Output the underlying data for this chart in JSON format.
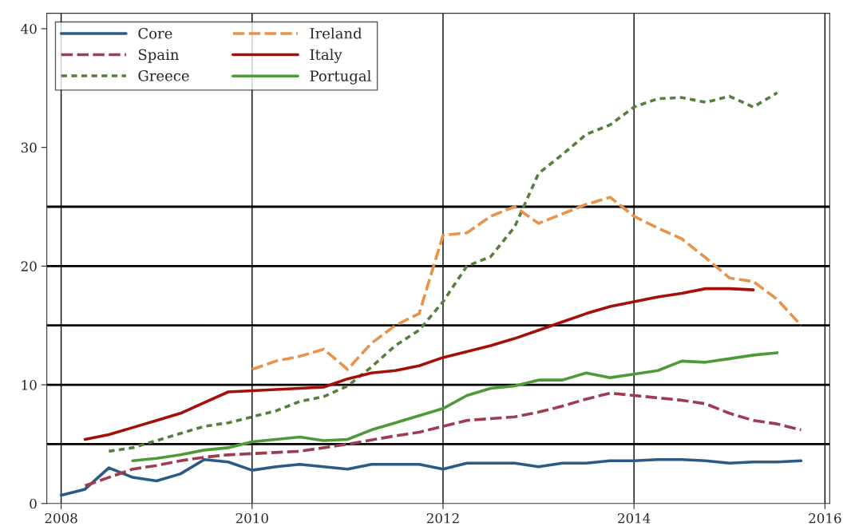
{
  "chart_data": {
    "type": "line",
    "xlim": [
      2007.85,
      2016.05
    ],
    "xticks": [
      2008,
      2010,
      2012,
      2014,
      2016
    ],
    "ylim": [
      0,
      41.3
    ],
    "yticks": [
      0,
      10,
      20,
      30,
      40
    ],
    "grid": "x",
    "legend": "top left",
    "series": [
      {
        "name": "Core",
        "color": "#2b5b84",
        "line_style": "solid",
        "x": [
          2008.0,
          2008.25,
          2008.5,
          2008.75,
          2009.0,
          2009.25,
          2009.5,
          2009.75,
          2010.0,
          2010.25,
          2010.5,
          2010.75,
          2011.0,
          2011.25,
          2011.5,
          2011.75,
          2012.0,
          2012.25,
          2012.5,
          2012.75,
          2013.0,
          2013.25,
          2013.5,
          2013.75,
          2014.0,
          2014.25,
          2014.5,
          2014.75,
          2015.0,
          2015.25,
          2015.5,
          2015.75
        ],
        "values": [
          0.7,
          1.2,
          3.0,
          2.2,
          1.9,
          2.5,
          3.7,
          3.5,
          2.8,
          3.1,
          3.3,
          3.1,
          2.9,
          3.3,
          3.3,
          3.3,
          2.9,
          3.4,
          3.4,
          3.4,
          3.1,
          3.4,
          3.4,
          3.6,
          3.6,
          3.7,
          3.7,
          3.6,
          3.4,
          3.5,
          3.5,
          3.6
        ]
      },
      {
        "name": "Spain",
        "color": "#9c3d52",
        "line_style": "dashed",
        "x": [
          2008.25,
          2008.5,
          2008.75,
          2009.0,
          2009.25,
          2009.5,
          2009.75,
          2010.0,
          2010.5,
          2011.0,
          2011.5,
          2011.75,
          2012.0,
          2012.25,
          2012.75,
          2013.0,
          2013.25,
          2013.5,
          2013.75,
          2014.0,
          2014.5,
          2014.75,
          2015.0,
          2015.25,
          2015.5,
          2015.75
        ],
        "values": [
          1.5,
          2.2,
          2.9,
          3.2,
          3.6,
          3.9,
          4.1,
          4.2,
          4.4,
          5.0,
          5.7,
          6.0,
          6.5,
          7.0,
          7.3,
          7.7,
          8.2,
          8.8,
          9.3,
          9.1,
          8.7,
          8.4,
          7.6,
          7.0,
          6.7,
          6.2
        ]
      },
      {
        "name": "Greece",
        "color": "#557f3a",
        "line_style": "dotted",
        "x": [
          2008.5,
          2008.75,
          2009.0,
          2009.25,
          2009.5,
          2009.75,
          2010.0,
          2010.25,
          2010.5,
          2010.75,
          2011.0,
          2011.25,
          2011.5,
          2011.75,
          2012.0,
          2012.25,
          2012.5,
          2012.75,
          2013.0,
          2013.25,
          2013.5,
          2013.75,
          2014.0,
          2014.25,
          2014.5,
          2014.75,
          2015.0,
          2015.25,
          2015.5
        ],
        "values": [
          4.4,
          4.7,
          5.3,
          5.9,
          6.5,
          6.8,
          7.3,
          7.8,
          8.6,
          9.0,
          9.9,
          11.5,
          13.3,
          14.6,
          17.0,
          20.0,
          20.8,
          23.3,
          27.8,
          29.4,
          31.1,
          31.9,
          33.4,
          34.1,
          34.2,
          33.8,
          34.3,
          33.4,
          34.6
        ]
      },
      {
        "name": "Ireland",
        "color": "#e8924a",
        "line_style": "dashed",
        "x": [
          2010.0,
          2010.25,
          2010.5,
          2010.75,
          2011.0,
          2011.25,
          2011.5,
          2011.75,
          2012.0,
          2012.25,
          2012.5,
          2012.75,
          2013.0,
          2013.25,
          2013.5,
          2013.75,
          2014.0,
          2014.25,
          2014.5,
          2014.75,
          2015.0,
          2015.25,
          2015.5,
          2015.75
        ],
        "values": [
          11.3,
          12.0,
          12.4,
          13.0,
          11.3,
          13.5,
          15.0,
          16.0,
          22.6,
          22.8,
          24.2,
          25.0,
          23.6,
          24.4,
          25.2,
          25.8,
          24.2,
          23.2,
          22.3,
          20.7,
          19.0,
          18.7,
          17.2,
          15.0
        ]
      },
      {
        "name": "Italy",
        "color": "#a50f0a",
        "line_style": "solid",
        "x": [
          2008.25,
          2008.5,
          2008.75,
          2009.0,
          2009.25,
          2009.5,
          2009.75,
          2010.0,
          2010.5,
          2010.75,
          2011.0,
          2011.25,
          2011.5,
          2011.75,
          2012.0,
          2012.25,
          2012.5,
          2012.75,
          2013.0,
          2013.25,
          2013.5,
          2013.75,
          2014.0,
          2014.25,
          2014.5,
          2014.75,
          2015.0,
          2015.25
        ],
        "values": [
          5.4,
          5.8,
          6.4,
          7.0,
          7.6,
          8.5,
          9.4,
          9.5,
          9.7,
          9.8,
          10.5,
          11.0,
          11.2,
          11.6,
          12.3,
          12.8,
          13.3,
          13.9,
          14.6,
          15.3,
          16.0,
          16.6,
          17.0,
          17.4,
          17.7,
          18.1,
          18.1,
          18.0
        ]
      },
      {
        "name": "Portugal",
        "color": "#4e9a38",
        "line_style": "solid",
        "x": [
          2008.75,
          2009.0,
          2009.25,
          2009.5,
          2009.75,
          2010.0,
          2010.25,
          2010.5,
          2010.75,
          2011.0,
          2011.25,
          2011.5,
          2011.75,
          2012.0,
          2012.25,
          2012.5,
          2012.75,
          2013.0,
          2013.25,
          2013.5,
          2013.75,
          2014.0,
          2014.25,
          2014.5,
          2014.75,
          2015.0,
          2015.25,
          2015.5
        ],
        "values": [
          3.6,
          3.8,
          4.1,
          4.5,
          4.7,
          5.2,
          5.4,
          5.6,
          5.3,
          5.4,
          6.2,
          6.8,
          7.4,
          8.0,
          9.1,
          9.7,
          9.9,
          10.4,
          10.4,
          11.0,
          10.6,
          10.9,
          11.2,
          12.0,
          11.9,
          12.2,
          12.5,
          12.7
        ]
      }
    ],
    "ref_lines": [
      {
        "axis": "y",
        "value": 5,
        "color": "#000000"
      },
      {
        "axis": "y",
        "value": 10,
        "color": "#000000"
      },
      {
        "axis": "y",
        "value": 15,
        "color": "#000000"
      },
      {
        "axis": "y",
        "value": 20,
        "color": "#000000"
      },
      {
        "axis": "y",
        "value": 25,
        "color": "#000000"
      }
    ]
  }
}
